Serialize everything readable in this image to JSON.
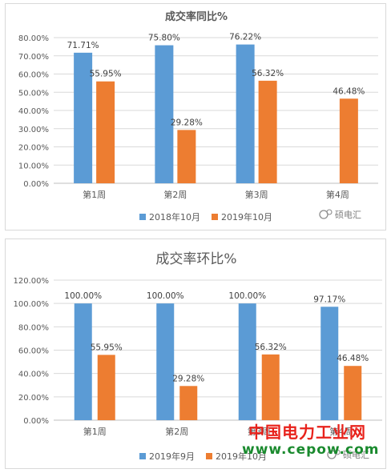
{
  "chart_data": [
    {
      "type": "bar",
      "title": "成交率同比%",
      "categories": [
        "第1周",
        "第2周",
        "第3周",
        "第4周"
      ],
      "series": [
        {
          "name": "2018年10月",
          "values": [
            71.71,
            75.8,
            76.22,
            null
          ],
          "labels": [
            "71.71%",
            "75.80%",
            "76.22%",
            ""
          ],
          "color": "#5b9bd5"
        },
        {
          "name": "2019年10月",
          "values": [
            55.95,
            29.28,
            56.32,
            46.48
          ],
          "labels": [
            "55.95%",
            "29.28%",
            "56.32%",
            "46.48%"
          ],
          "color": "#ed7d31"
        }
      ],
      "ylim": [
        0,
        80
      ],
      "yticks": [
        "0.00%",
        "10.00%",
        "20.00%",
        "30.00%",
        "40.00%",
        "50.00%",
        "60.00%",
        "70.00%",
        "80.00%"
      ],
      "grid": true,
      "legend": "bottom",
      "watermark": "硕电汇"
    },
    {
      "type": "bar",
      "title": "成交率环比%",
      "categories": [
        "第1周",
        "第2周",
        "第3周",
        "第4周"
      ],
      "series": [
        {
          "name": "2019年9月",
          "values": [
            100.0,
            100.0,
            100.0,
            97.17
          ],
          "labels": [
            "100.00%",
            "100.00%",
            "100.00%",
            "97.17%"
          ],
          "color": "#5b9bd5"
        },
        {
          "name": "2019年10月",
          "values": [
            55.95,
            29.28,
            56.32,
            46.48
          ],
          "labels": [
            "55.95%",
            "29.28%",
            "56.32%",
            "46.48%"
          ],
          "color": "#ed7d31"
        }
      ],
      "ylim": [
        0,
        120
      ],
      "yticks": [
        "0.00%",
        "20.00%",
        "40.00%",
        "60.00%",
        "80.00%",
        "100.00%",
        "120.00%"
      ],
      "grid": true,
      "legend": "bottom",
      "watermark": "硕电汇"
    }
  ],
  "brand": {
    "name_cn": "中国电力工业网",
    "url": "www.cepow.com"
  }
}
